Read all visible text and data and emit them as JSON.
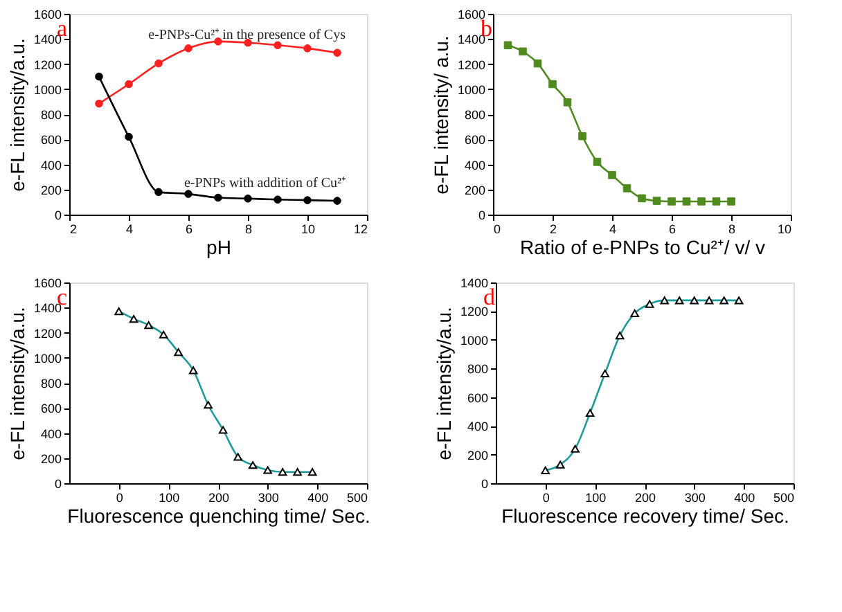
{
  "chart_data": [
    {
      "type": "line",
      "title": "a",
      "xlabel": "pH",
      "ylabel": "e-FL intensity/a.u.",
      "xlim": [
        2,
        12
      ],
      "xticks": [
        2,
        4,
        6,
        8,
        10,
        12
      ],
      "ylim": [
        0,
        1600
      ],
      "yticks": [
        0,
        200,
        400,
        600,
        800,
        1000,
        1200,
        1400,
        1600
      ],
      "grid": false,
      "marker": "circle",
      "line_style": "solid",
      "x": [
        3,
        4,
        5,
        6,
        7,
        8,
        9,
        10,
        11
      ],
      "series": [
        {
          "name": "e-PNPs-Cu²⁺ in the presence of Cys",
          "color": "#ff2020",
          "values": [
            885,
            1040,
            1205,
            1325,
            1380,
            1370,
            1350,
            1325,
            1290
          ]
        },
        {
          "name": "e-PNPs with addition of Cu²⁺",
          "color": "#000000",
          "values": [
            1100,
            620,
            180,
            165,
            135,
            128,
            120,
            115,
            110
          ]
        }
      ]
    },
    {
      "type": "line",
      "title": "b",
      "xlabel": "Ratio of e-PNPs to Cu²⁺/ v/ v",
      "ylabel": "e-FL intensity/ a.u.",
      "xlim": [
        0,
        10
      ],
      "xticks": [
        0,
        2,
        4,
        6,
        8,
        10
      ],
      "ylim": [
        0,
        1600
      ],
      "yticks": [
        0,
        200,
        400,
        600,
        800,
        1000,
        1200,
        1400,
        1600
      ],
      "grid": false,
      "marker": "square",
      "line_style": "solid",
      "x": [
        0.5,
        1,
        1.5,
        2,
        2.5,
        3,
        3.5,
        4,
        4.5,
        5,
        5.5,
        6,
        6.5,
        7,
        7.5,
        8
      ],
      "series": [
        {
          "color": "#4e8a1e",
          "values": [
            1350,
            1300,
            1205,
            1040,
            895,
            625,
            420,
            315,
            210,
            130,
            110,
            105,
            105,
            105,
            105,
            105
          ]
        }
      ]
    },
    {
      "type": "line",
      "title": "c",
      "xlabel": "Fluorescence quenching time/ Sec.",
      "ylabel": "e-FL intensity/a.u.",
      "xlim": [
        -100,
        500
      ],
      "xticks": [
        0,
        100,
        200,
        300,
        400,
        500
      ],
      "ylim": [
        0,
        1600
      ],
      "yticks": [
        0,
        200,
        400,
        600,
        800,
        1000,
        1200,
        1400,
        1600
      ],
      "grid": false,
      "marker": "triangle",
      "line_style": "solid",
      "x": [
        0,
        30,
        60,
        90,
        120,
        150,
        180,
        210,
        240,
        270,
        300,
        330,
        360,
        390
      ],
      "series": [
        {
          "color": "#1f9a9a",
          "values": [
            1370,
            1310,
            1260,
            1185,
            1045,
            900,
            625,
            425,
            210,
            145,
            105,
            90,
            90,
            90
          ]
        }
      ]
    },
    {
      "type": "line",
      "title": "d",
      "xlabel": "Fluorescence recovery time/ Sec.",
      "ylabel": "e-FL intensity/a.u.",
      "xlim": [
        -100,
        500
      ],
      "xticks": [
        0,
        100,
        200,
        300,
        400,
        500
      ],
      "ylim": [
        0,
        1400
      ],
      "yticks": [
        0,
        200,
        400,
        600,
        800,
        1000,
        1200,
        1400
      ],
      "grid": false,
      "marker": "triangle",
      "line_style": "solid",
      "x": [
        0,
        30,
        60,
        90,
        120,
        150,
        180,
        210,
        240,
        270,
        300,
        330,
        360,
        390
      ],
      "series": [
        {
          "color": "#1f9a9a",
          "values": [
            90,
            130,
            240,
            490,
            765,
            1030,
            1185,
            1250,
            1275,
            1275,
            1275,
            1275,
            1275,
            1275
          ]
        }
      ]
    }
  ]
}
